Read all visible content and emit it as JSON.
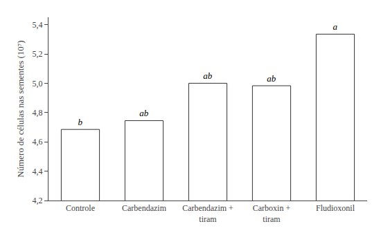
{
  "chart_data": {
    "type": "bar",
    "categories": [
      "Controle",
      "Carbendazim",
      "Carbendazim +\ntiram",
      "Carboxin +\ntiram",
      "Fludioxonil"
    ],
    "values": [
      4.685,
      4.745,
      5.0,
      4.983,
      5.335
    ],
    "annotations": [
      "b",
      "ab",
      "ab",
      "ab",
      "a"
    ],
    "color": "#ffffff",
    "ylabel": "Número de células nas sementes (10⁷)",
    "ylim": [
      4.2,
      5.45
    ],
    "yticks": [
      {
        "value": 4.2,
        "label": "4,2"
      },
      {
        "value": 4.4,
        "label": "4,4"
      },
      {
        "value": 4.6,
        "label": "4,6"
      },
      {
        "value": 4.8,
        "label": "4,8"
      },
      {
        "value": 5.0,
        "label": "5,0"
      },
      {
        "value": 5.2,
        "label": "5,2"
      },
      {
        "value": 5.4,
        "label": "5,4"
      }
    ],
    "grid": false
  }
}
